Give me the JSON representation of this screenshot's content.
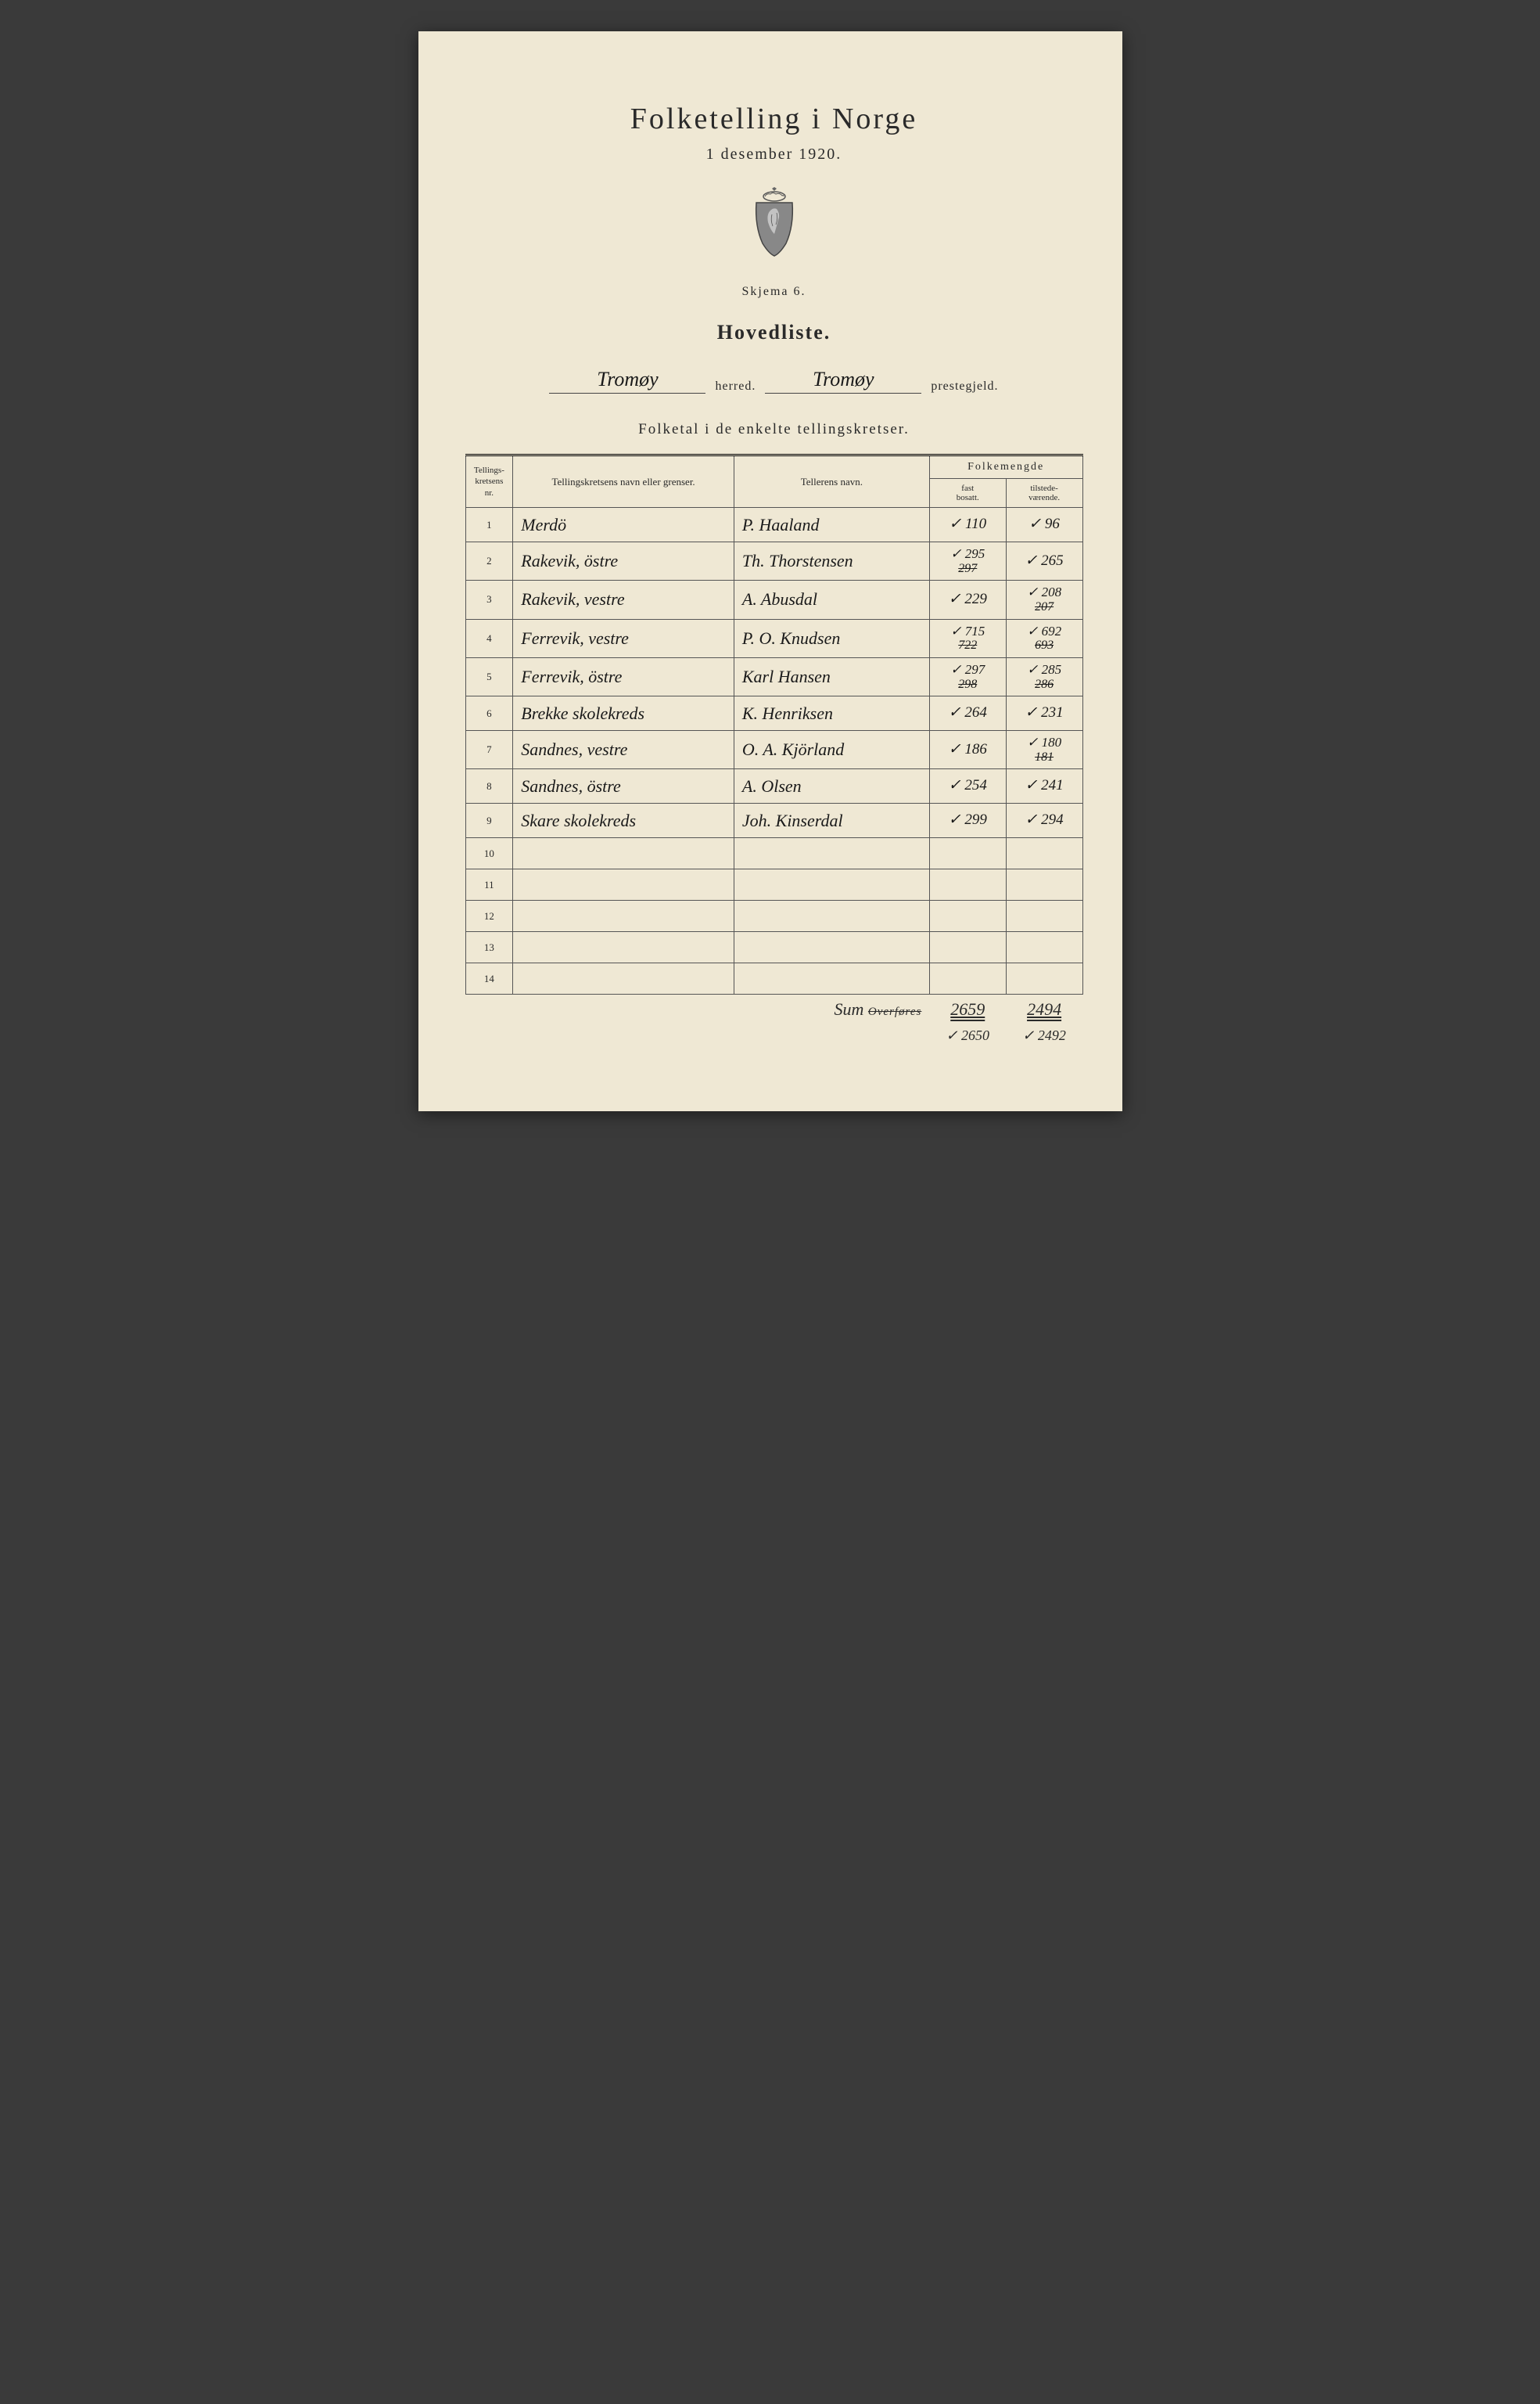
{
  "header": {
    "title": "Folketelling i Norge",
    "date": "1 desember 1920.",
    "schema": "Skjema 6.",
    "listTitle": "Hovedliste.",
    "herredValue": "Tromøy",
    "herredLabel": "herred.",
    "prestegjeldValue": "Tromøy",
    "prestegjeldLabel": "prestegjeld.",
    "subtitle": "Folketal i de enkelte tellingskretser."
  },
  "table": {
    "headers": {
      "nr": "Tellings-\nkretsens\nnr.",
      "name": "Tellingskretsens navn eller grenser.",
      "teller": "Tellerens navn.",
      "folkemengde": "Folkemengde",
      "fast": "fast\nbosatt.",
      "tilstede": "tilstede-\nværende."
    },
    "rows": [
      {
        "nr": "1",
        "name": "Merdö",
        "teller": "P. Haaland",
        "fast": "✓ 110",
        "tilstede": "✓ 96"
      },
      {
        "nr": "2",
        "name": "Rakevik, östre",
        "teller": "Th. Thorstensen",
        "fast_corr": "✓ 295",
        "fast_struck": "297",
        "tilstede": "✓ 265"
      },
      {
        "nr": "3",
        "name": "Rakevik, vestre",
        "teller": "A. Abusdal",
        "fast": "✓ 229",
        "tilstede_corr": "✓ 208",
        "tilstede_struck": "207"
      },
      {
        "nr": "4",
        "name": "Ferrevik, vestre",
        "teller": "P. O. Knudsen",
        "fast_corr": "✓ 715",
        "fast_struck": "722",
        "tilstede_corr": "✓ 692",
        "tilstede_struck": "693"
      },
      {
        "nr": "5",
        "name": "Ferrevik, östre",
        "teller": "Karl Hansen",
        "fast_corr": "✓ 297",
        "fast_struck": "298",
        "tilstede_corr": "✓ 285",
        "tilstede_struck": "286"
      },
      {
        "nr": "6",
        "name": "Brekke skolekreds",
        "teller": "K. Henriksen",
        "fast": "✓ 264",
        "tilstede": "✓ 231"
      },
      {
        "nr": "7",
        "name": "Sandnes, vestre",
        "teller": "O. A. Kjörland",
        "fast": "✓ 186",
        "tilstede_corr": "✓ 180",
        "tilstede_struck": "181"
      },
      {
        "nr": "8",
        "name": "Sandnes, östre",
        "teller": "A. Olsen",
        "fast": "✓ 254",
        "tilstede": "✓ 241"
      },
      {
        "nr": "9",
        "name": "Skare skolekreds",
        "teller": "Joh. Kinserdal",
        "fast": "✓ 299",
        "tilstede": "✓ 294"
      }
    ],
    "emptyRows": [
      "10",
      "11",
      "12",
      "13",
      "14"
    ],
    "footer": {
      "sumLabel": "Sum",
      "overfores": "Overføres",
      "fastSum": "2659",
      "tilstedeSum": "2494",
      "fastFinal": "✓ 2650",
      "tilstedeFinal": "✓ 2492"
    }
  }
}
